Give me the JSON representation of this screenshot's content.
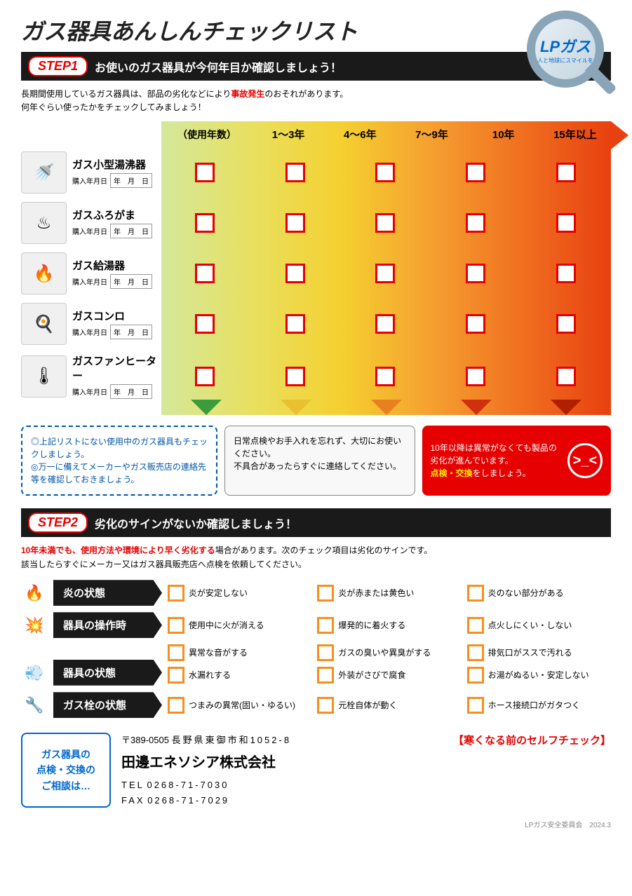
{
  "title": "ガス器具あんしんチェックリスト",
  "lp_badge": {
    "main": "LPガス",
    "sub": "人と地球にスマイルを"
  },
  "step1": {
    "label": "STEP1",
    "text": "お使いのガス器具が今何年目か確認しましょう！",
    "intro_pre": "長期間使用しているガス器具は、部品の劣化などにより",
    "intro_red": "事故発生",
    "intro_post": "のおそれがあります。\n何年ぐらい使ったかをチェックしてみましょう！",
    "usage_label": "（使用年数）",
    "year_cols": [
      "1〜3年",
      "4〜6年",
      "7〜9年",
      "10年",
      "15年以上"
    ],
    "devices": [
      {
        "name": "ガス小型湯沸器",
        "icon": "🚿"
      },
      {
        "name": "ガスふろがま",
        "icon": "♨"
      },
      {
        "name": "ガス給湯器",
        "icon": "🔥"
      },
      {
        "name": "ガスコンロ",
        "icon": "🍳"
      },
      {
        "name": "ガスファンヒーター",
        "icon": "🌡"
      }
    ],
    "date_prefix": "購入年月日",
    "date_tpl": "年　月　日",
    "tri_colors": [
      "#3a9c3a",
      "#e8c030",
      "#e88020",
      "#d03010",
      "#b02000"
    ],
    "note_blue": "◎上記リストにない使用中のガス器具もチェックしましょう。\n◎万一に備えてメーカーやガス販売店の連絡先等を確認しておきましょう。",
    "note_gray": "日常点検やお手入れを忘れず、大切にお使いください。\n不具合があったらすぐに連絡してください。",
    "note_red_pre": "10年以降は異常がなくても製品の劣化が進んでいます。",
    "note_red_em": "点検・交換",
    "note_red_post": "をしましょう。"
  },
  "step2": {
    "label": "STEP2",
    "text": "劣化のサインがないか確認しましょう！",
    "intro_red": "10年未満でも、使用方法や環境により早く劣化する",
    "intro_post": "場合があります。次のチェック項目は劣化のサインです。\n該当したらすぐにメーカー又はガス器具販売店へ点検を依頼してください。",
    "signs": [
      {
        "icon": "🔥",
        "icon_color": "#f59020",
        "label": "炎の状態",
        "items": [
          "炎が安定しない",
          "炎が赤または黄色い",
          "炎のない部分がある"
        ]
      },
      {
        "icon": "💥",
        "icon_color": "#e60000",
        "label": "器具の操作時",
        "items": [
          "使用中に火が消える",
          "爆発的に着火する",
          "点火しにくい・しない"
        ]
      },
      {
        "icon": "💨",
        "icon_color": "#888",
        "label": "器具の状態",
        "rows": [
          [
            "異常な音がする",
            "ガスの臭いや異臭がする",
            "排気口がススで汚れる"
          ],
          [
            "水漏れする",
            "外装がさびで腐食",
            "お湯がぬるい・安定しない"
          ]
        ]
      },
      {
        "icon": "🔧",
        "icon_color": "#555",
        "label": "ガス栓の状態",
        "items": [
          "つまみの異常(固い・ゆるい)",
          "元栓自体が動く",
          "ホース接続口がガタつく"
        ]
      }
    ]
  },
  "footer": {
    "consult": "ガス器具の\n点検・交換の\nご相談は…",
    "postal": "〒389-0505",
    "address": "長野県東御市和1052-8",
    "company": "田邊エネソシア株式会社",
    "tel_label": "TEL",
    "tel": "0268-71-7030",
    "fax_label": "FAX",
    "fax": "0268-71-7029",
    "self_check": "【寒くなる前のセルフチェック】",
    "credit": "LPガス安全委員会　2024.3"
  }
}
